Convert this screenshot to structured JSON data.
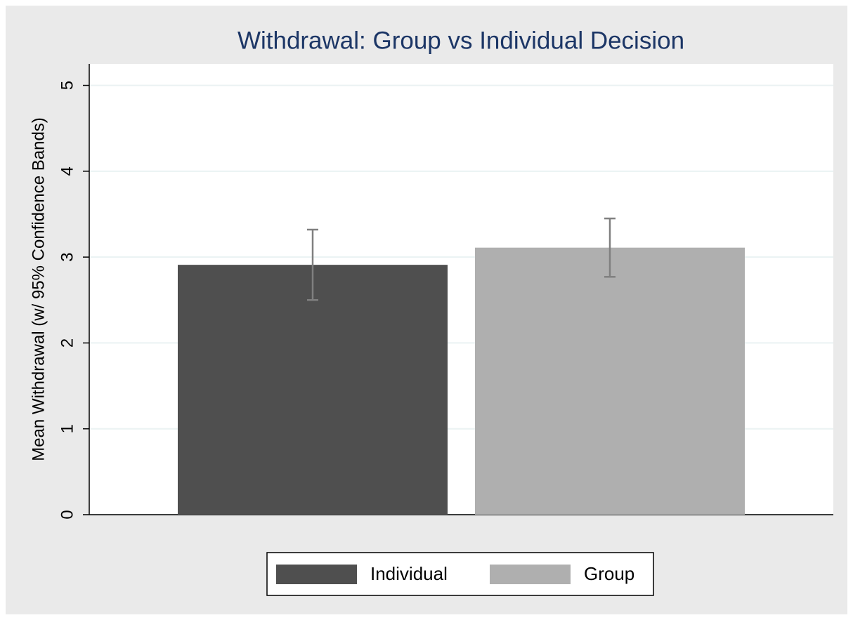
{
  "chart_data": {
    "type": "bar",
    "title": "Withdrawal: Group vs Individual Decision",
    "y_label": "Mean Withdrawal (w/ 95% Confidence Bands)",
    "series": [
      {
        "name": "Individual",
        "color": "#4f4f4f",
        "values": [
          2.91
        ],
        "lower": [
          2.5
        ],
        "upper": [
          3.32
        ]
      },
      {
        "name": "Group",
        "color": "#afafaf",
        "values": [
          3.11
        ],
        "lower": [
          2.77
        ],
        "upper": [
          3.45
        ]
      }
    ],
    "ylim": [
      0,
      5.25
    ],
    "yticks": [
      0,
      1,
      2,
      3,
      4,
      5
    ],
    "grid": true,
    "legend": "bottom"
  }
}
